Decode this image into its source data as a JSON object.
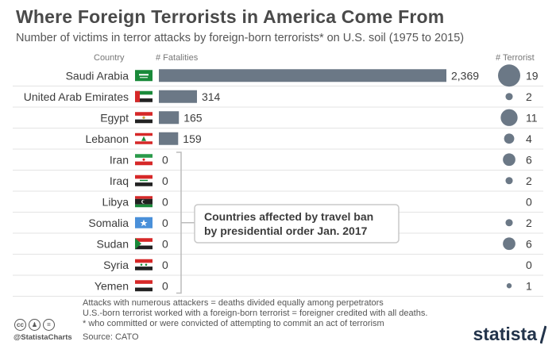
{
  "header": {
    "title": "Where Foreign Terrorists in America Come From",
    "subtitle": "Number of victims in terror attacks by foreign-born terrorists* on U.S. soil (1975 to 2015)"
  },
  "columns": {
    "country": "Country",
    "fatalities": "# Fatalities",
    "terrorist": "# Terrorist"
  },
  "annotation": {
    "line1": "Countries affected by travel ban",
    "line2": "by presidential order Jan. 2017"
  },
  "notes": [
    "Attacks with numerous attackers = deaths divided equally among perpetrators",
    "U.S.-born terrorist worked with a foreign-born terrorist = foreigner credited with all deaths.",
    "* who committed or were convicted of attempting to commit an act of terrorism"
  ],
  "source": "Source: CATO",
  "footer": {
    "handle": "@StatistaCharts",
    "brand": "statista",
    "cc_icons": [
      "cc-icon",
      "by-icon",
      "nd-icon"
    ]
  },
  "colors": {
    "bar": "#6b7886",
    "bubble": "#6b7886",
    "bracket": "#bbbbbb",
    "brand": "#23344b"
  },
  "chart_data": {
    "type": "bar",
    "orientation": "horizontal",
    "categories": [
      "Saudi Arabia",
      "United Arab Emirates",
      "Egypt",
      "Lebanon",
      "Iran",
      "Iraq",
      "Libya",
      "Somalia",
      "Sudan",
      "Syria",
      "Yemen"
    ],
    "series": [
      {
        "name": "# Fatalities",
        "values": [
          2369,
          314,
          165,
          159,
          0,
          0,
          0,
          0,
          0,
          0,
          0
        ]
      },
      {
        "name": "# Terrorist",
        "values": [
          19,
          2,
          11,
          4,
          6,
          2,
          0,
          2,
          6,
          0,
          1
        ]
      }
    ],
    "flags": [
      "saudi-arabia",
      "uae",
      "egypt",
      "lebanon",
      "iran",
      "iraq",
      "libya",
      "somalia",
      "sudan",
      "syria",
      "yemen"
    ],
    "travel_ban_countries": [
      "Iran",
      "Iraq",
      "Libya",
      "Somalia",
      "Sudan",
      "Syria",
      "Yemen"
    ],
    "grid": true
  }
}
